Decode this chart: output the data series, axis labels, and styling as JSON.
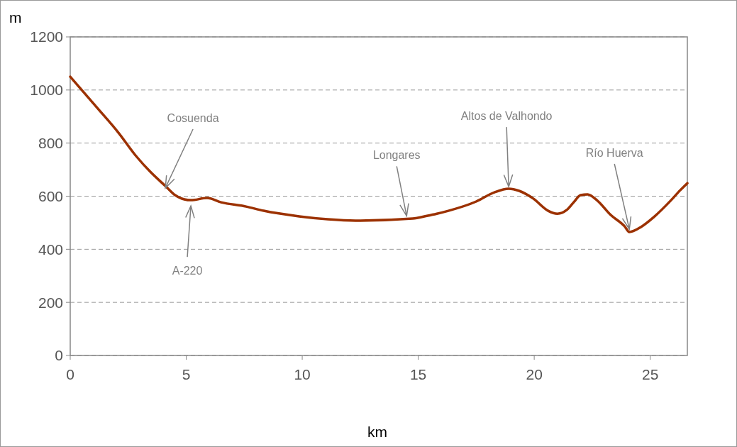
{
  "chart_data": {
    "type": "line",
    "xlabel": "km",
    "ylabel": "m",
    "x": [
      0,
      1.16,
      2.08,
      2.84,
      3.45,
      4.13,
      4.52,
      4.92,
      5.2,
      5.9,
      6.5,
      7.58,
      8.34,
      9.87,
      11.1,
      12.3,
      14.76,
      15.37,
      15.8,
      16.3,
      17.5,
      18.3,
      18.9,
      19.35,
      19.96,
      20.6,
      21.0,
      21.4,
      21.7,
      22.0,
      22.3,
      22.7,
      23.3,
      23.9,
      24.1,
      24.6,
      25.15,
      25.9,
      26.3,
      26.6
    ],
    "series": [
      {
        "color": "#9c3100",
        "values": [
          1050,
          933,
          839,
          751,
          692,
          636,
          604,
          588,
          585,
          593,
          577,
          561,
          545,
          524,
          513,
          508,
          516,
          526,
          534,
          545,
          580,
          615,
          628,
          620,
          591,
          545,
          534,
          548,
          577,
          604,
          607,
          585,
          529,
          486,
          465,
          484,
          521,
          585,
          623,
          649
        ]
      }
    ],
    "xlim": [
      0,
      26.6
    ],
    "xticks": [
      0,
      5,
      10,
      15,
      20,
      25
    ],
    "ylim": [
      0,
      1200
    ],
    "yticks": [
      0,
      200,
      400,
      600,
      800,
      1000,
      1200
    ],
    "grid": "y",
    "marker": "none",
    "line_style": "solid",
    "annotations": [
      {
        "text": "Cosuenda",
        "x": 4.1,
        "y": 620
      },
      {
        "text": "A-220",
        "x": 5.2,
        "y": 585
      },
      {
        "text": "Longares",
        "x": 14.5,
        "y": 515
      },
      {
        "text": "Altos de Valhondo",
        "x": 18.9,
        "y": 625
      },
      {
        "text": "Río Huerva",
        "x": 24.1,
        "y": 465
      }
    ]
  }
}
